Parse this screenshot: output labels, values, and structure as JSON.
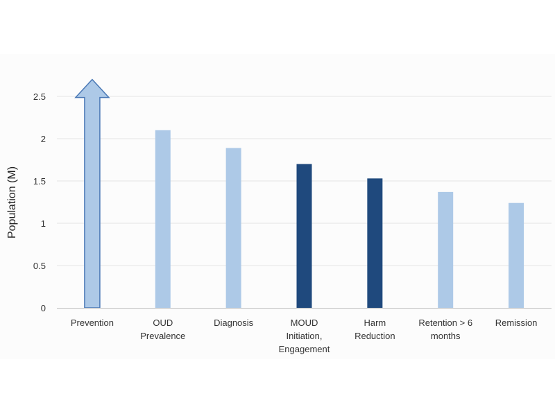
{
  "chart_data": {
    "type": "bar",
    "title": "",
    "xlabel": "",
    "ylabel": "Population (M)",
    "ylim": [
      0,
      2.5
    ],
    "grid": true,
    "legend": "none",
    "y_ticks": [
      "0",
      "0.5",
      "1",
      "1.5",
      "2",
      "2.5"
    ],
    "categories": [
      [
        "Prevention"
      ],
      [
        "OUD",
        "Prevalence"
      ],
      [
        "Diagnosis"
      ],
      [
        "MOUD",
        "Initiation,",
        "Engagement"
      ],
      [
        "Harm",
        "Reduction"
      ],
      [
        "Retention > 6",
        "months"
      ],
      [
        "Remission"
      ]
    ],
    "values": [
      2.7,
      2.1,
      1.89,
      1.7,
      1.53,
      1.37,
      1.24
    ],
    "bar_styles": [
      "arrow",
      "light",
      "light",
      "dark",
      "dark",
      "light",
      "light"
    ],
    "colors": {
      "light": "#adc9e7",
      "dark": "#1f497d",
      "arrow_stroke": "#4a78b5",
      "grid": "#e3e3e3",
      "axis": "#bdbdbd"
    }
  }
}
